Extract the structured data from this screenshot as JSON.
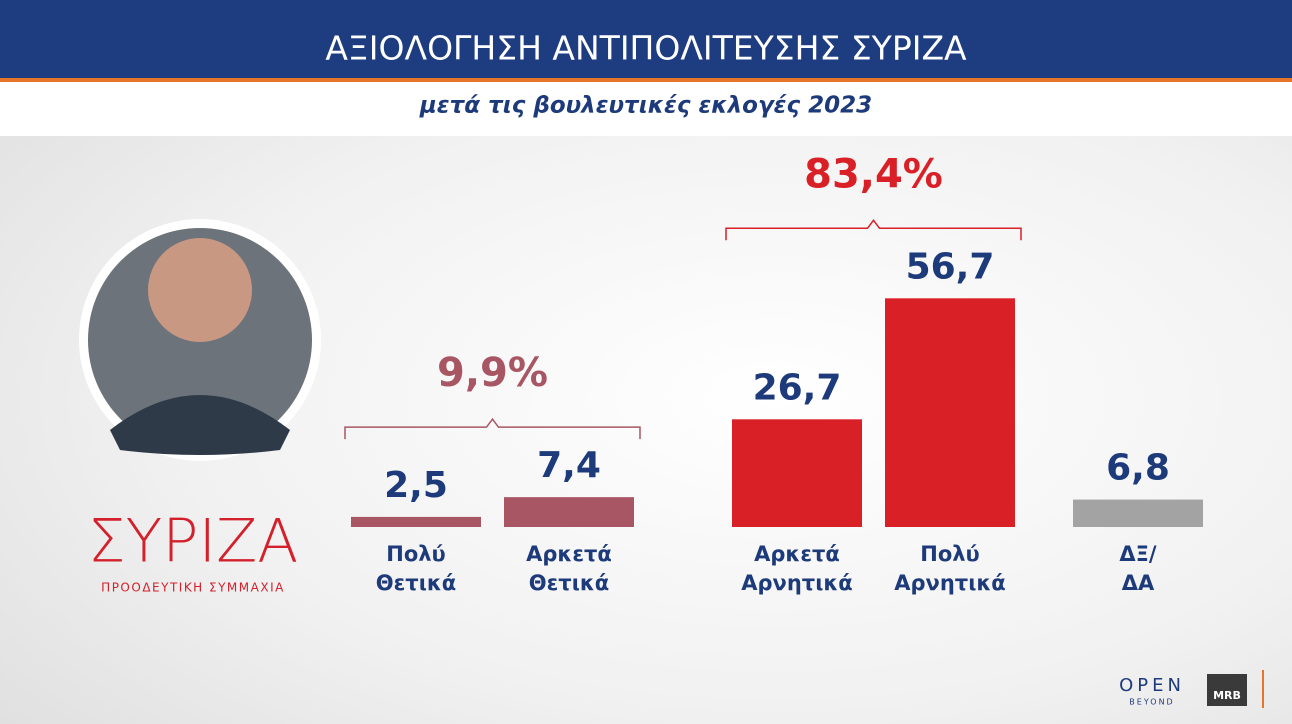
{
  "chart_data": {
    "type": "bar",
    "title": "ΑΞΙΟΛΟΓΗΣΗ ΑΝΤΙΠΟΛΙΤΕΥΣΗΣ ΣΥΡΙΖΑ",
    "subtitle": "μετά τις βουλευτικές εκλογές 2023",
    "categories": [
      "Πολύ Θετικά",
      "Αρκετά Θετικά",
      "Αρκετά Αρνητικά",
      "Πολύ Αρνητικά",
      "ΔΞ/ΔΑ"
    ],
    "values": [
      2.5,
      7.4,
      26.7,
      56.7,
      6.8
    ],
    "value_labels": [
      "2,5",
      "7,4",
      "26,7",
      "56,7",
      "6,8"
    ],
    "colors": [
      "#a85663",
      "#a85663",
      "#d92027",
      "#d92027",
      "#a3a3a3"
    ],
    "annotations": [
      "9,9%",
      "83,4%"
    ],
    "ylim": [
      0,
      60
    ]
  },
  "branding": {
    "party": "ΣΥΡΙΖΑ",
    "party_tagline": "ΠΡΟΟΔΕΥΤΙΚΗ ΣΥΜΜΑΧΙΑ",
    "channel": "OPEN",
    "channel_tagline": "BEYOND",
    "pollster": "MRB"
  }
}
